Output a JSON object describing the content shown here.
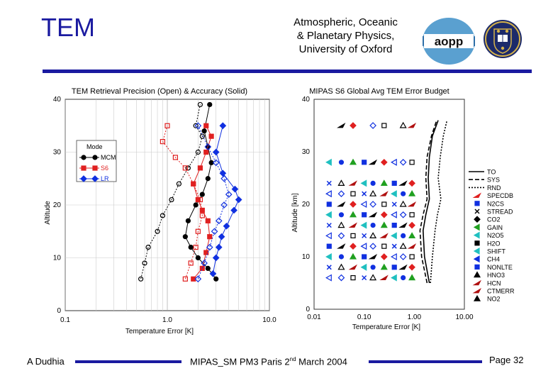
{
  "header": {
    "title": "TEM",
    "institution_line1": "Atmospheric, Oceanic",
    "institution_line2": "& Planetary Physics,",
    "institution_line3": "University of Oxford",
    "logo_text": "aopp"
  },
  "footer": {
    "author": "A Dudhia",
    "event_prefix": "MIPAS_SM PM3 Paris 2",
    "event_sup": "nd",
    "event_suffix": " March 2004",
    "page": "Page 32"
  },
  "colors": {
    "accent": "#1a1aa0",
    "mcm": "#000000",
    "s6": "#e02020",
    "lr": "#1030e0"
  },
  "chart_data": [
    {
      "type": "scatter",
      "title": "TEM Retrieval Precision (Open) & Accuracy (Solid)",
      "xlabel": "Temperature Error [K]",
      "ylabel": "Altitude",
      "xscale": "log",
      "xlim": [
        0.1,
        10.0
      ],
      "ylim": [
        0,
        40
      ],
      "xticks": [
        "0.1",
        "1.0",
        "10.0"
      ],
      "yticks": [
        "0",
        "10",
        "20",
        "30",
        "40"
      ],
      "legend": {
        "title": "Mode",
        "entries": [
          "MCM",
          "S6",
          "LR"
        ],
        "placement": "top-left"
      },
      "series": [
        {
          "name": "MCM",
          "kind": "accuracy",
          "x": [
            3.0,
            2.5,
            2.0,
            1.7,
            1.5,
            1.6,
            1.9,
            2.2,
            2.5,
            2.7,
            2.5,
            2.3,
            2.6
          ],
          "y": [
            6,
            8,
            10,
            12,
            14,
            17,
            20,
            22,
            25,
            28,
            31,
            34,
            39
          ]
        },
        {
          "name": "MCM",
          "kind": "precision",
          "x": [
            0.55,
            0.6,
            0.65,
            0.8,
            0.9,
            1.1,
            1.3,
            1.6,
            2.0,
            2.2,
            1.9,
            2.1
          ],
          "y": [
            6,
            9,
            12,
            15,
            18,
            21,
            24,
            27,
            30,
            33,
            35,
            39
          ]
        },
        {
          "name": "S6",
          "kind": "accuracy",
          "x": [
            1.8,
            2.2,
            2.4,
            2.6,
            2.5,
            2.2,
            2.0,
            1.8,
            2.1,
            2.4,
            2.7,
            2.4
          ],
          "y": [
            6,
            8,
            11,
            14,
            17,
            19,
            21,
            24,
            27,
            30,
            33,
            35
          ]
        },
        {
          "name": "S6",
          "kind": "precision",
          "x": [
            1.5,
            1.7,
            1.9,
            2.0,
            2.2,
            2.1,
            1.8,
            1.5,
            1.2,
            0.9,
            1.0
          ],
          "y": [
            6,
            9,
            12,
            15,
            18,
            21,
            24,
            27,
            29,
            32,
            35
          ]
        },
        {
          "name": "LR",
          "kind": "accuracy",
          "x": [
            2.8,
            3.0,
            3.2,
            3.4,
            3.8,
            4.5,
            5.0,
            4.6,
            3.5,
            3.0,
            3.5
          ],
          "y": [
            7,
            10,
            12,
            14,
            16,
            19,
            21,
            23,
            26,
            30,
            35
          ]
        },
        {
          "name": "LR",
          "kind": "precision",
          "x": [
            2.0,
            2.3,
            2.6,
            2.9,
            3.2,
            3.6,
            4.0,
            3.6,
            3.0,
            2.5,
            2.0
          ],
          "y": [
            6,
            9,
            12,
            15,
            17,
            20,
            22,
            25,
            28,
            31,
            35
          ]
        }
      ]
    },
    {
      "type": "scatter",
      "title": "MIPAS S6 Global Avg TEM Error Budget",
      "xlabel": "Temperature Error [K]",
      "ylabel": "Altitude [km]",
      "xscale": "log",
      "xlim": [
        0.01,
        10.0
      ],
      "ylim": [
        0,
        40
      ],
      "xticks": [
        "0.01",
        "0.10",
        "1.00",
        "10.00"
      ],
      "yticks": [
        "0",
        "10",
        "20",
        "30",
        "40"
      ],
      "legend": {
        "placement": "right",
        "entries": [
          "TO",
          "SYS",
          "RND",
          "SPECDB",
          "N2CS",
          "STREAD",
          "CO2",
          "GAIN",
          "N2O5",
          "H2O",
          "SHIFT",
          "CH4",
          "NONLTE",
          "HNO3",
          "HCN",
          "CTMERR",
          "NO2"
        ]
      },
      "lines": [
        {
          "name": "TO",
          "x": [
            2.0,
            1.6,
            1.5,
            1.7,
            2.0,
            1.9,
            2.0,
            2.3,
            3.0
          ],
          "y": [
            5,
            10,
            15,
            18,
            21,
            25,
            29,
            33,
            36
          ]
        },
        {
          "name": "SYS",
          "x": [
            1.8,
            1.4,
            1.3,
            1.5,
            1.8,
            1.7,
            1.8,
            2.2,
            2.8
          ],
          "y": [
            5,
            10,
            15,
            18,
            21,
            25,
            29,
            33,
            36
          ]
        },
        {
          "name": "RND",
          "x": [
            2.1,
            2.3,
            2.6,
            2.9,
            3.4,
            3.0,
            3.3,
            3.8,
            4.5
          ],
          "y": [
            5,
            10,
            15,
            18,
            21,
            25,
            29,
            33,
            36
          ]
        }
      ],
      "marker_rows": [
        6,
        8,
        10,
        12,
        14,
        16,
        18,
        20,
        22,
        24,
        28,
        35
      ]
    }
  ]
}
